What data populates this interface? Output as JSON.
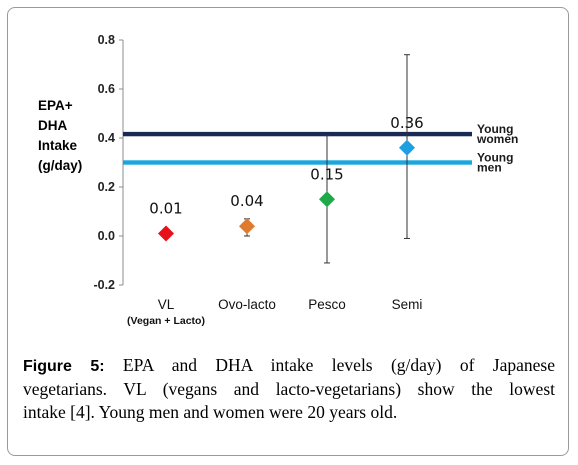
{
  "chart_data": {
    "type": "scatter",
    "ylabel_lines": [
      "EPA+",
      "DHA",
      "Intake",
      "(g/day)"
    ],
    "ylim": [
      -0.2,
      0.8
    ],
    "yticks": [
      "0.8",
      "0.6",
      "0.4",
      "0.2",
      "0.0",
      "-0.2"
    ],
    "ytick_values": [
      0.8,
      0.6,
      0.4,
      0.2,
      0.0,
      -0.2
    ],
    "categories": [
      "VL",
      "Ovo-lacto",
      "Pesco",
      "Semi"
    ],
    "category_sublabels": [
      "(Vegan + Lacto)",
      "",
      "",
      ""
    ],
    "values": [
      0.01,
      0.04,
      0.15,
      0.36
    ],
    "value_labels": [
      "0.01",
      "0.04",
      "0.15",
      "0.36"
    ],
    "error_low": [
      0.0,
      0.0,
      -0.11,
      -0.01
    ],
    "error_high": [
      0.02,
      0.07,
      0.41,
      0.74
    ],
    "colors": [
      "#e8101a",
      "#e07a2e",
      "#1faa4a",
      "#1e9fe0"
    ],
    "reference_lines": [
      {
        "label_lines": [
          "Young",
          "women"
        ],
        "value": 0.416,
        "color": "#1a2a57"
      },
      {
        "label_lines": [
          "Young",
          "men"
        ],
        "value": 0.3,
        "color": "#19a7de"
      }
    ],
    "grid": false
  },
  "caption": {
    "figure_label": "Figure 5:",
    "lines": [
      "EPA and DHA intake levels (g/day) of Japanese",
      "vegetarians. VL (vegans and lacto-vegetarians) show the lowest",
      "intake [4]. Young men and women were 20 years old."
    ]
  }
}
